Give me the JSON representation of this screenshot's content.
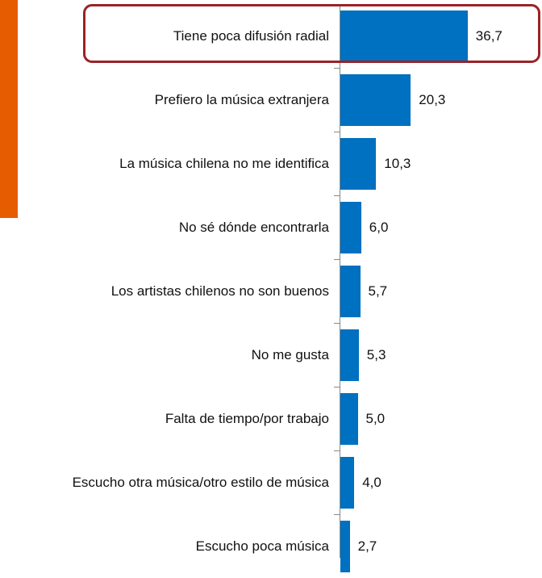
{
  "chart_data": {
    "type": "bar",
    "orientation": "horizontal",
    "categories": [
      "Tiene poca difusión radial",
      "Prefiero la música extranjera",
      "La música chilena no me identifica",
      "No sé dónde encontrarla",
      "Los artistas chilenos no son buenos",
      "No me gusta",
      "Falta de tiempo/por trabajo",
      "Escucho otra música/otro estilo de música",
      "Escucho poca música"
    ],
    "values": [
      36.7,
      20.3,
      10.3,
      6.0,
      5.7,
      5.3,
      5.0,
      4.0,
      2.7
    ],
    "value_labels": [
      "36,7",
      "20,3",
      "10,3",
      "6,0",
      "5,7",
      "5,3",
      "5,0",
      "4,0",
      "2,7"
    ],
    "color": "#0070c0",
    "highlight_color": "#9b2226",
    "accent_color": "#e65c00"
  }
}
